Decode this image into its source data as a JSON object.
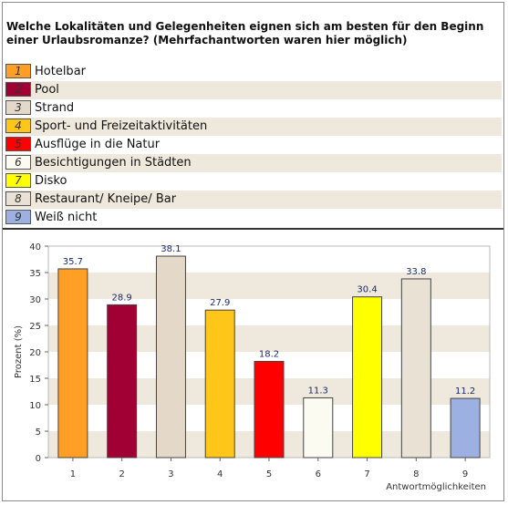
{
  "question": "Welche Lokalitäten und Gelegenheiten eignen sich am besten für den Beginn einer Urlaubsromanze? (Mehrfachantworten waren hier möglich)",
  "legend": [
    {
      "num": "1",
      "label": "Hotelbar",
      "color": "#ff9f26"
    },
    {
      "num": "2",
      "label": "Pool",
      "color": "#a00033"
    },
    {
      "num": "3",
      "label": "Strand",
      "color": "#e4d9c8"
    },
    {
      "num": "4",
      "label": "Sport- und Freizeitaktivitäten",
      "color": "#ffc61a"
    },
    {
      "num": "5",
      "label": "Ausflüge in die Natur",
      "color": "#ff0000"
    },
    {
      "num": "6",
      "label": "Besichtigungen in Städten",
      "color": "#fbfbf2"
    },
    {
      "num": "7",
      "label": "Disko",
      "color": "#ffff00"
    },
    {
      "num": "8",
      "label": "Restaurant/ Kneipe/ Bar",
      "color": "#e9e1d4"
    },
    {
      "num": "9",
      "label": "Weiß nicht",
      "color": "#9db0e2"
    }
  ],
  "chart_data": {
    "type": "bar",
    "categories": [
      "1",
      "2",
      "3",
      "4",
      "5",
      "6",
      "7",
      "8",
      "9"
    ],
    "values": [
      35.7,
      28.9,
      38.1,
      27.9,
      18.2,
      11.3,
      30.4,
      33.8,
      11.2
    ],
    "value_labels": [
      "35.7",
      "28.9",
      "38.1",
      "27.9",
      "18.2",
      "11.3",
      "30.4",
      "33.8",
      "11.2"
    ],
    "colors": [
      "#ff9f26",
      "#a00033",
      "#e4d9c8",
      "#ffc61a",
      "#ff0000",
      "#fbfbf2",
      "#ffff00",
      "#e9e1d4",
      "#9db0e2"
    ],
    "xlabel": "Antwortmöglichkeiten",
    "ylabel": "Prozent (%)",
    "ylim": [
      0,
      40
    ],
    "yticks": [
      "0",
      "5",
      "10",
      "15",
      "20",
      "25",
      "30",
      "35",
      "40"
    ],
    "banded_background": true
  }
}
